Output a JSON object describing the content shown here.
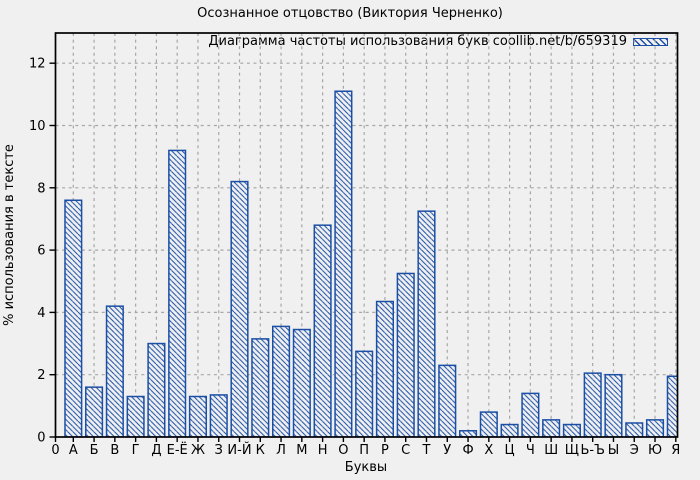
{
  "title": "Осознанное отцовство (Виктория Черненко)",
  "chart_data": {
    "type": "bar",
    "title": "Осознанное отцовство (Виктория Черненко)",
    "legend_label": "Диаграмма частоты использования букв coollib.net/b/659319",
    "legend_position": "top-right-inside",
    "xlabel": "Буквы",
    "ylabel": "% использования в тексте",
    "origin_label": "0",
    "categories": [
      "А",
      "Б",
      "В",
      "Г",
      "Д",
      "Е-Ё",
      "Ж",
      "З",
      "И-Й",
      "К",
      "Л",
      "М",
      "Н",
      "О",
      "П",
      "Р",
      "С",
      "Т",
      "У",
      "Ф",
      "Х",
      "Ц",
      "Ч",
      "Ш",
      "Щ",
      "Ь-Ъ",
      "Ы",
      "Э",
      "Ю",
      "Я"
    ],
    "values": [
      7.6,
      1.6,
      4.2,
      1.3,
      3.0,
      9.2,
      1.3,
      1.35,
      8.2,
      3.15,
      3.55,
      3.45,
      6.8,
      11.1,
      2.75,
      4.35,
      5.25,
      7.25,
      2.3,
      0.2,
      0.8,
      0.4,
      1.4,
      0.55,
      0.4,
      2.05,
      2.0,
      0.45,
      0.55,
      1.95
    ],
    "yticks": [
      0,
      2,
      4,
      6,
      8,
      10,
      12
    ],
    "ylim": [
      0,
      13
    ],
    "grid": true,
    "bar_style": "hatched-diagonal",
    "bar_fill": "none-hatched"
  },
  "colors": {
    "background": "#f0f0f0",
    "bar": "#1b4fa5",
    "grid": "#a6a6a6",
    "axis": "#000000",
    "text": "#000000"
  }
}
